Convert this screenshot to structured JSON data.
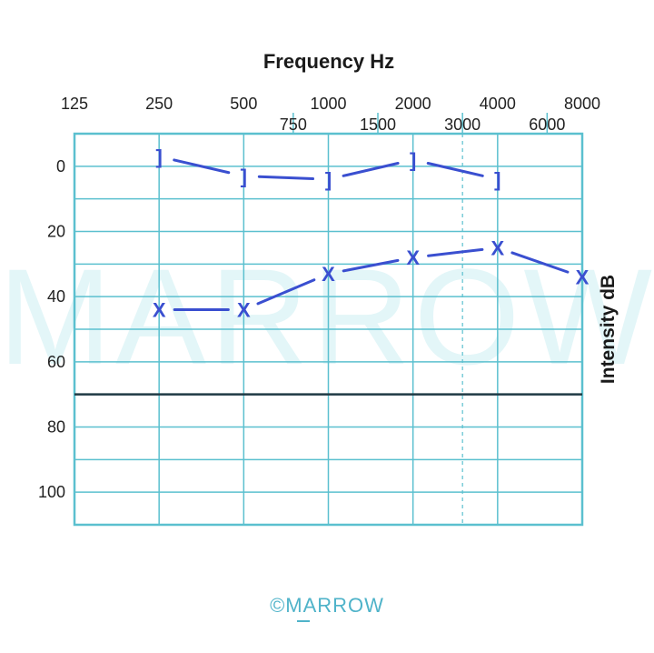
{
  "brand": "©MARROW",
  "watermark": "MARROW",
  "colors": {
    "grid": "#5bc0cf",
    "data": "#3a4fd0",
    "threshold_line": "#1f3a44",
    "brand": "#4fb3c9",
    "watermark": "#e3f6f8"
  },
  "chart_data": {
    "type": "line",
    "title": "Frequency Hz",
    "xlabel": "Frequency Hz",
    "ylabel": "Intensity dB",
    "x_ticks_top": [
      "125",
      "250",
      "500",
      "1000",
      "2000",
      "4000",
      "8000"
    ],
    "x_ticks_mid": [
      "750",
      "1500",
      "3000",
      "6000"
    ],
    "y_ticks": [
      "0",
      "20",
      "40",
      "60",
      "80",
      "100"
    ],
    "ylim": [
      -10,
      110
    ],
    "y_inverted": true,
    "x_scale": "log2 octave",
    "grid": true,
    "dashed_vertical_at": "3000",
    "reference_line_db": 70,
    "series": [
      {
        "marker": "]",
        "points": [
          {
            "x": 250,
            "y": -3
          },
          {
            "x": 500,
            "y": 3
          },
          {
            "x": 1000,
            "y": 4
          },
          {
            "x": 2000,
            "y": -2
          },
          {
            "x": 4000,
            "y": 4
          }
        ]
      },
      {
        "marker": "X",
        "points": [
          {
            "x": 250,
            "y": 44
          },
          {
            "x": 500,
            "y": 44
          },
          {
            "x": 1000,
            "y": 33
          },
          {
            "x": 2000,
            "y": 28
          },
          {
            "x": 4000,
            "y": 25
          },
          {
            "x": 8000,
            "y": 34
          }
        ]
      }
    ]
  }
}
